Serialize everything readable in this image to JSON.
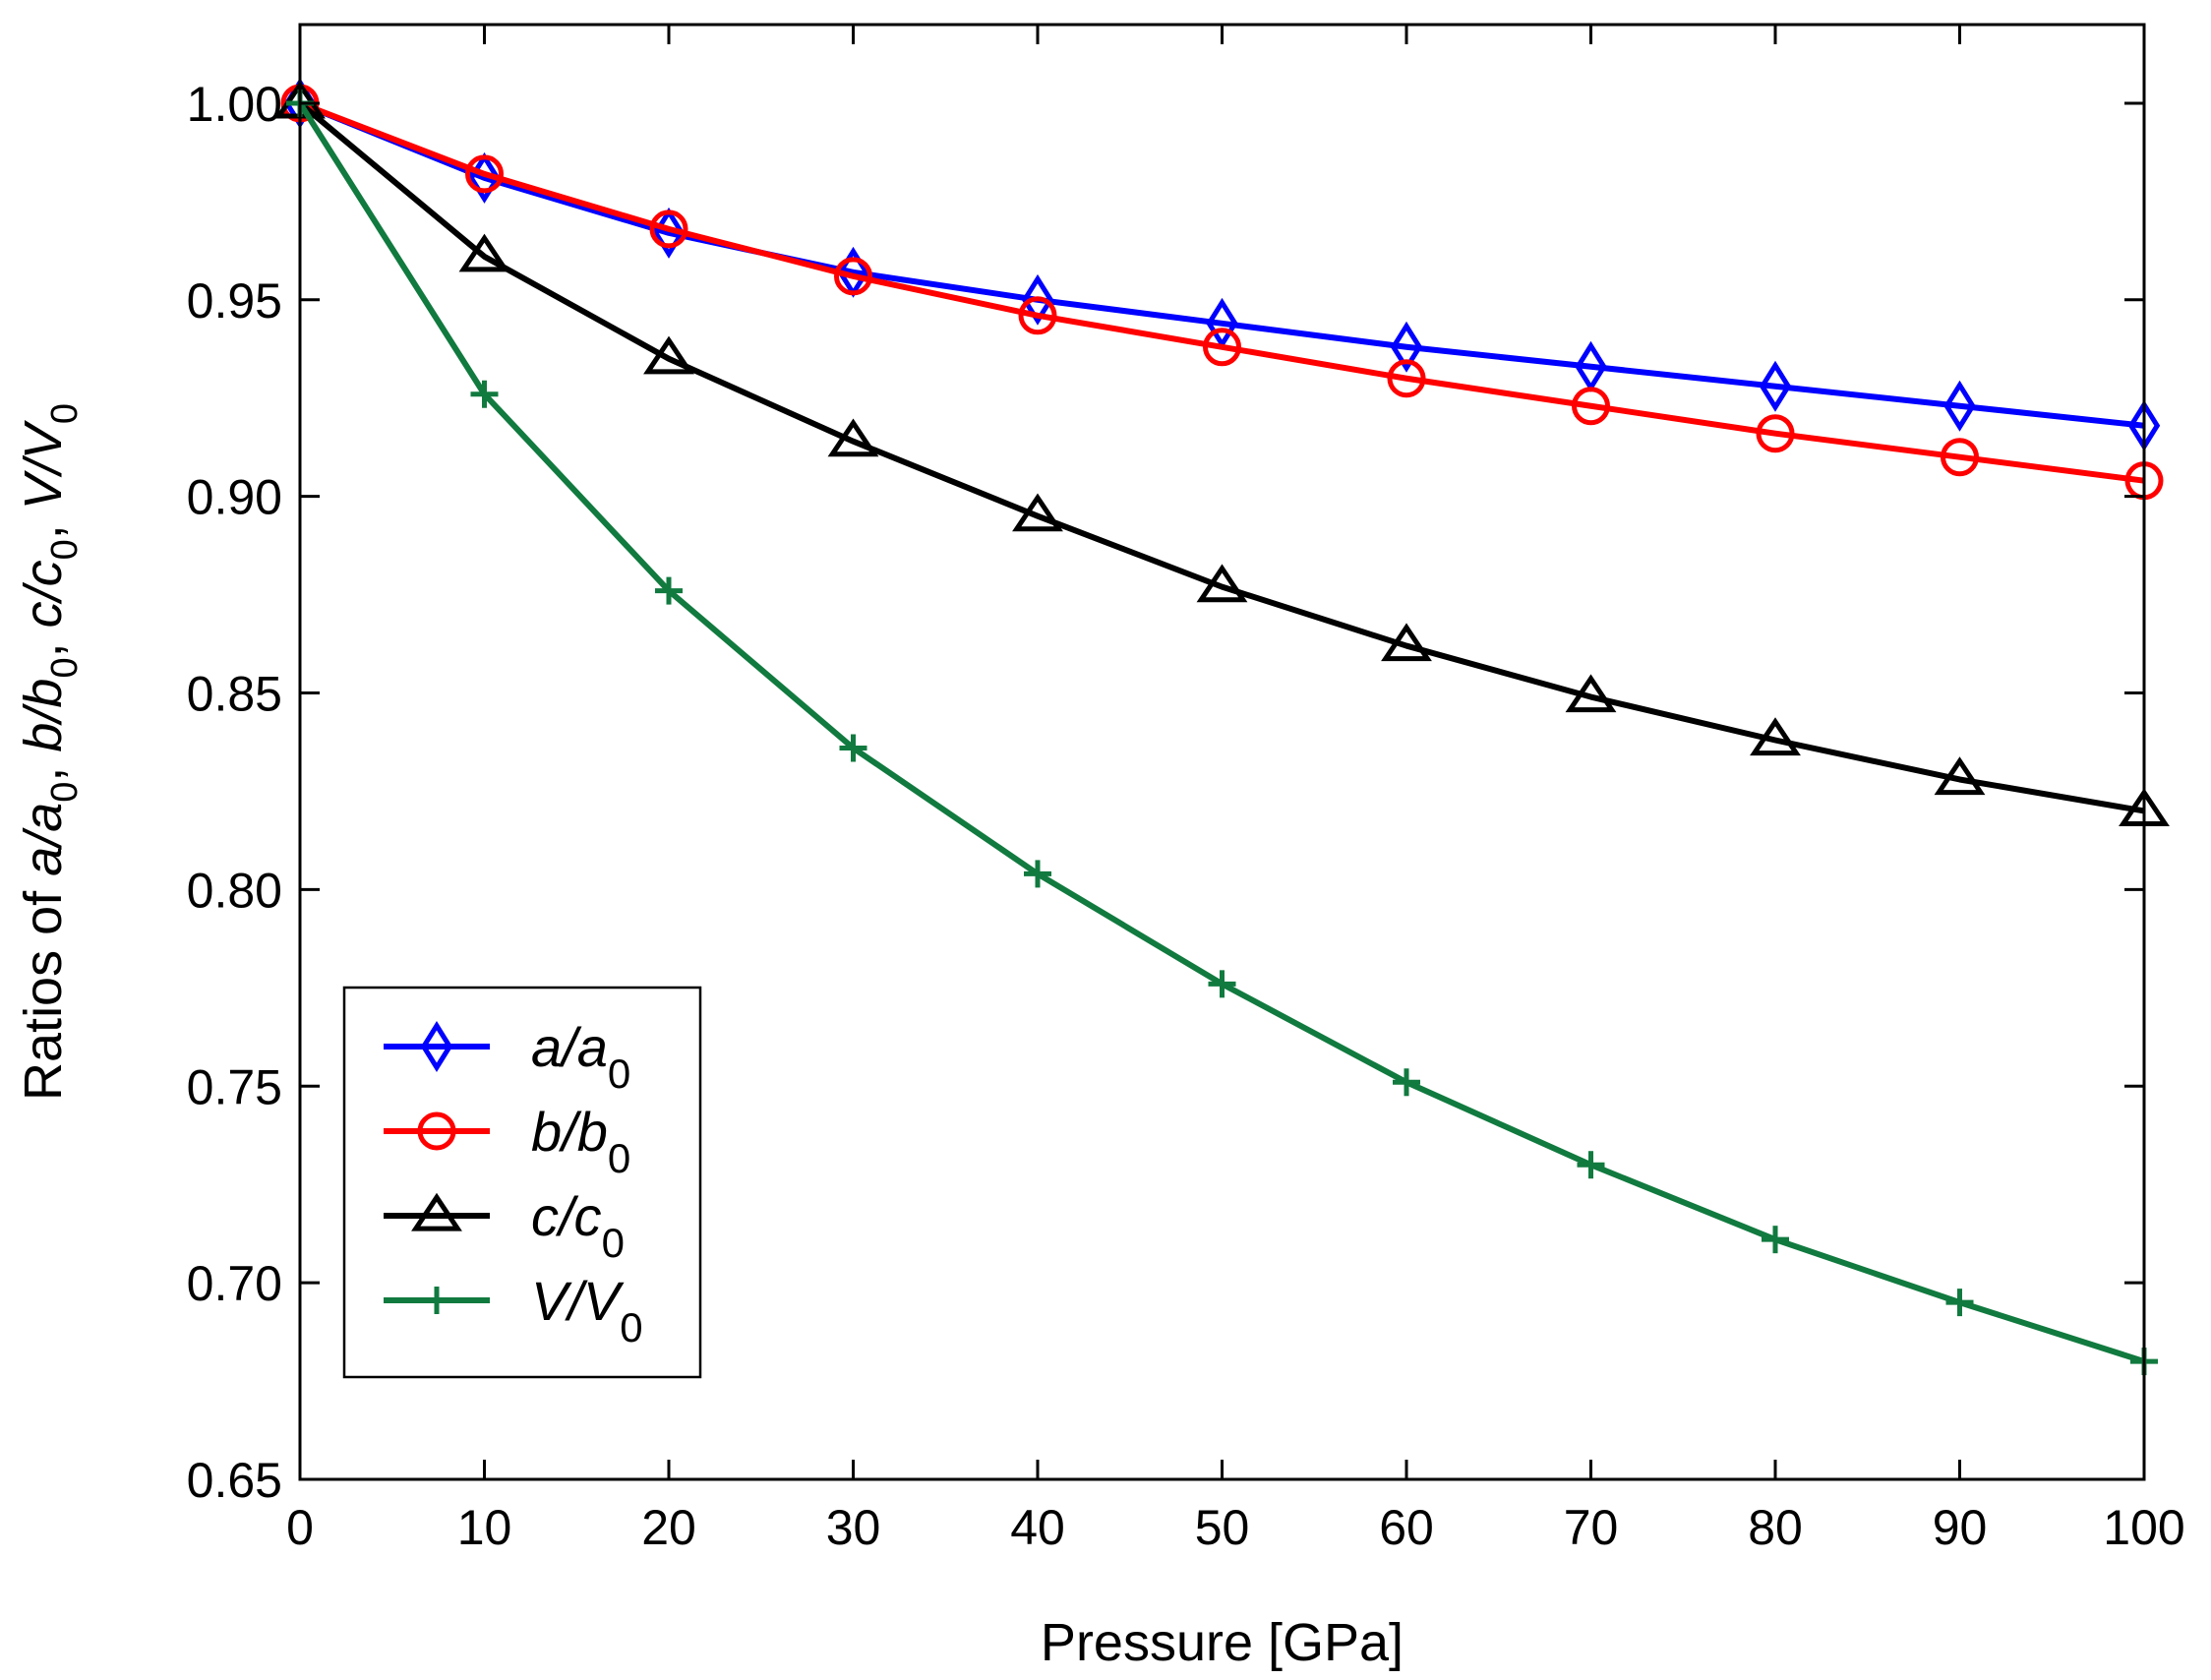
{
  "chart_data": {
    "type": "line",
    "xlabel": "Pressure [GPa]",
    "ylabel": {
      "prefix": "Ratios of ",
      "parts": [
        {
          "num": "a",
          "den": "a",
          "sub": "0"
        },
        {
          "num": "b",
          "den": "b",
          "sub": "0"
        },
        {
          "num": "c",
          "den": "c",
          "sub": "0"
        },
        {
          "num": "V",
          "den": "V",
          "sub": "0"
        }
      ],
      "separator": ", "
    },
    "xlim": [
      0,
      100
    ],
    "ylim": [
      0.65,
      1.02
    ],
    "xticks": [
      0,
      10,
      20,
      30,
      40,
      50,
      60,
      70,
      80,
      90,
      100
    ],
    "xtick_labels": [
      "0",
      "10",
      "20",
      "30",
      "40",
      "50",
      "60",
      "70",
      "80",
      "90",
      "100"
    ],
    "yticks": [
      0.65,
      0.7,
      0.75,
      0.8,
      0.85,
      0.9,
      0.95,
      1.0
    ],
    "ytick_labels": [
      "0.65",
      "0.70",
      "0.75",
      "0.80",
      "0.85",
      "0.90",
      "0.95",
      "1.00"
    ],
    "grid": false,
    "legend_position": "bottom-left",
    "x": [
      0,
      10,
      20,
      30,
      40,
      50,
      60,
      70,
      80,
      90,
      100
    ],
    "series": [
      {
        "name": "a/a0",
        "label_num": "a",
        "label_den": "a",
        "label_sub": "0",
        "color": "#0000ff",
        "marker": "diamond",
        "values": [
          1.0,
          0.981,
          0.967,
          0.957,
          0.95,
          0.944,
          0.938,
          0.933,
          0.928,
          0.923,
          0.918
        ]
      },
      {
        "name": "b/b0",
        "label_num": "b",
        "label_den": "b",
        "label_sub": "0",
        "color": "#ff0000",
        "marker": "circle",
        "values": [
          1.0,
          0.982,
          0.968,
          0.956,
          0.946,
          0.938,
          0.93,
          0.923,
          0.916,
          0.91,
          0.904
        ]
      },
      {
        "name": "c/c0",
        "label_num": "c",
        "label_den": "c",
        "label_sub": "0",
        "color": "#000000",
        "marker": "triangle",
        "values": [
          1.0,
          0.961,
          0.935,
          0.914,
          0.895,
          0.877,
          0.862,
          0.849,
          0.838,
          0.828,
          0.82
        ]
      },
      {
        "name": "V/V0",
        "label_num": "V",
        "label_den": "V",
        "label_sub": "0",
        "color": "#117a3f",
        "marker": "plus",
        "values": [
          1.0,
          0.926,
          0.876,
          0.836,
          0.804,
          0.776,
          0.751,
          0.73,
          0.711,
          0.695,
          0.68
        ]
      }
    ]
  }
}
